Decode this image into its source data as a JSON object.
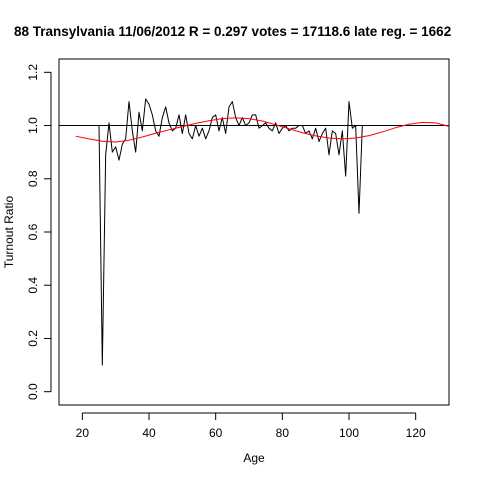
{
  "chart_data": {
    "type": "line",
    "title": "88 Transylvania 11/06/2012 R = 0.297 votes = 17118.6 late reg. = 1662",
    "xlabel": "Age",
    "ylabel": "Turnout Ratio",
    "xlim": [
      13,
      130
    ],
    "ylim": [
      -0.05,
      1.25
    ],
    "x_ticks": [
      20,
      40,
      60,
      80,
      100,
      120
    ],
    "x_tick_labels": [
      "20",
      "40",
      "60",
      "80",
      "100",
      "120"
    ],
    "y_ticks": [
      0.0,
      0.2,
      0.4,
      0.6,
      0.8,
      1.0,
      1.2
    ],
    "y_tick_labels": [
      "0.0",
      "0.2",
      "0.4",
      "0.6",
      "0.8",
      "1.0",
      "1.2"
    ],
    "reference_line": {
      "y": 1.0,
      "color": "#000000"
    },
    "series": [
      {
        "color": "#000000",
        "x": [
          25,
          26,
          27,
          28,
          29,
          30,
          31,
          32,
          33,
          34,
          35,
          36,
          37,
          38,
          39,
          40,
          41,
          42,
          43,
          44,
          45,
          46,
          47,
          48,
          49,
          50,
          51,
          52,
          53,
          54,
          55,
          56,
          57,
          58,
          59,
          60,
          61,
          62,
          63,
          64,
          65,
          66,
          67,
          68,
          69,
          70,
          71,
          72,
          73,
          74,
          75,
          76,
          77,
          78,
          79,
          80,
          81,
          82,
          83,
          84,
          85,
          86,
          87,
          88,
          89,
          90,
          91,
          92,
          93,
          94,
          95,
          96,
          97,
          98,
          99,
          100,
          101,
          102,
          103,
          104,
          105,
          106,
          107,
          108,
          109
        ],
        "y": [
          1.0,
          0.1,
          0.89,
          1.01,
          0.9,
          0.92,
          0.87,
          0.93,
          0.95,
          1.09,
          0.98,
          0.9,
          1.05,
          0.98,
          1.1,
          1.08,
          1.04,
          0.98,
          0.96,
          1.03,
          1.07,
          1.01,
          0.98,
          0.99,
          1.04,
          0.97,
          1.04,
          0.97,
          0.95,
          1.0,
          0.96,
          0.99,
          0.95,
          0.98,
          1.03,
          1.04,
          0.98,
          1.03,
          0.97,
          1.07,
          1.09,
          1.03,
          1.0,
          1.03,
          1.0,
          1.01,
          1.04,
          1.04,
          0.99,
          1.0,
          1.01,
          0.99,
          0.98,
          1.01,
          0.97,
          0.99,
          1.0,
          0.98,
          0.99,
          0.99,
          1.0,
          1.0,
          0.97,
          0.98,
          0.95,
          0.99,
          0.94,
          0.97,
          0.99,
          0.89,
          0.98,
          0.97,
          0.89,
          0.98,
          0.81,
          1.09,
          0.99,
          1.0,
          0.67,
          1.0,
          1.0,
          1.0,
          1.0,
          1.0,
          1.0
        ]
      },
      {
        "color": "#ff0000",
        "x": [
          18,
          22,
          26,
          30,
          34,
          38,
          42,
          46,
          50,
          54,
          58,
          62,
          66,
          70,
          74,
          78,
          82,
          86,
          90,
          94,
          98,
          102,
          106,
          110,
          114,
          118,
          122,
          126,
          130
        ],
        "y": [
          0.96,
          0.95,
          0.941,
          0.938,
          0.945,
          0.957,
          0.971,
          0.984,
          0.996,
          1.008,
          1.018,
          1.026,
          1.029,
          1.026,
          1.017,
          1.003,
          0.988,
          0.973,
          0.961,
          0.953,
          0.95,
          0.953,
          0.962,
          0.976,
          0.992,
          1.005,
          1.012,
          1.01,
          0.997
        ]
      }
    ]
  }
}
